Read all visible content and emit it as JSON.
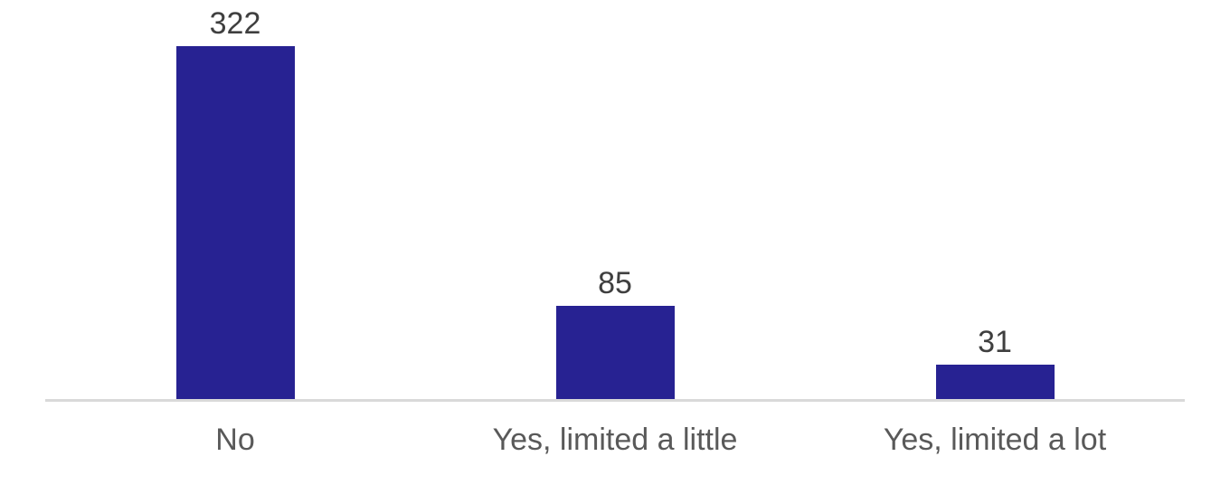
{
  "chart_data": {
    "type": "bar",
    "categories": [
      "No",
      "Yes, limited a little",
      "Yes, limited a lot"
    ],
    "values": [
      322,
      85,
      31
    ],
    "title": "",
    "xlabel": "",
    "ylabel": "",
    "ylim": [
      0,
      360
    ],
    "grid": false,
    "legend": false,
    "value_labels_shown": true,
    "bar_color": "#272292",
    "value_label_color": "#3F3F3F",
    "category_label_color": "#595959",
    "axis_line_color": "#D9D9D9"
  }
}
